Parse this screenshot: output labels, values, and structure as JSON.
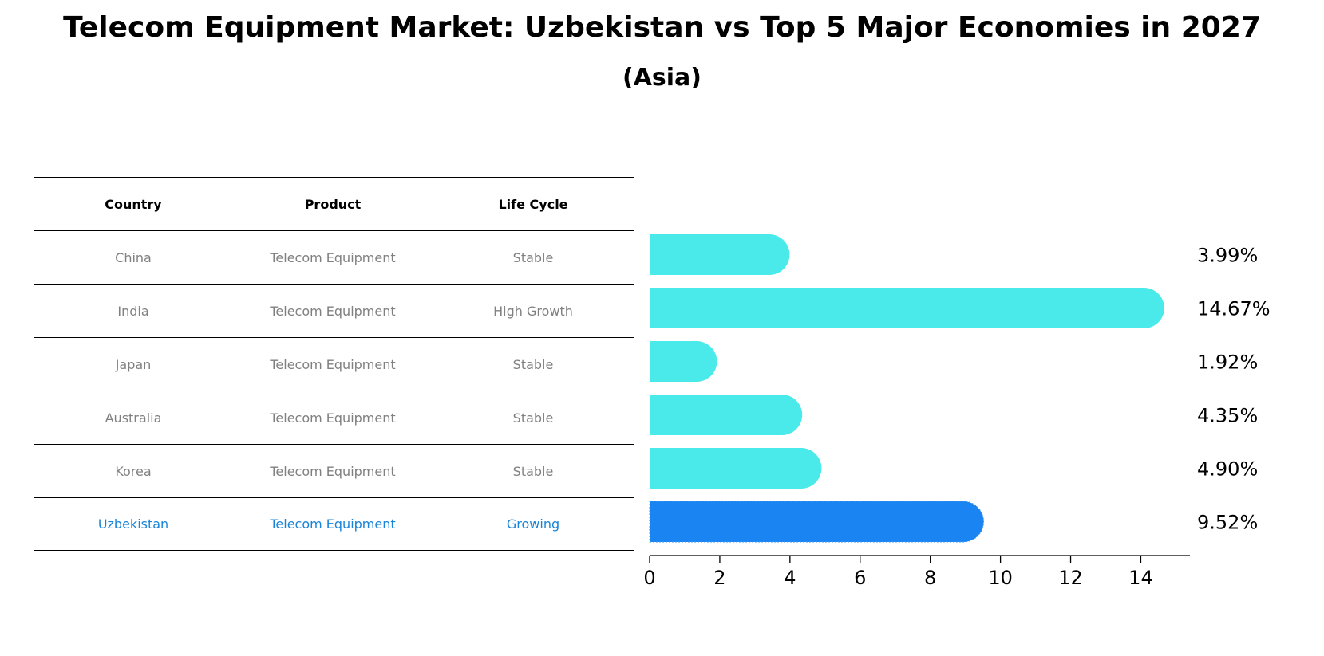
{
  "title": "Telecom Equipment Market: Uzbekistan vs Top 5 Major Economies in 2027",
  "subtitle": "(Asia)",
  "table": {
    "headers": [
      "Country",
      "Product",
      "Life Cycle"
    ],
    "rows": [
      {
        "country": "China",
        "product": "Telecom Equipment",
        "life_cycle": "Stable"
      },
      {
        "country": "India",
        "product": "Telecom Equipment",
        "life_cycle": "High Growth"
      },
      {
        "country": "Japan",
        "product": "Telecom Equipment",
        "life_cycle": "Stable"
      },
      {
        "country": "Australia",
        "product": "Telecom Equipment",
        "life_cycle": "Stable"
      },
      {
        "country": "Korea",
        "product": "Telecom Equipment",
        "life_cycle": "Stable"
      },
      {
        "country": "Uzbekistan",
        "product": "Telecom Equipment",
        "life_cycle": "Growing"
      }
    ]
  },
  "colors": {
    "bar": "#4aeaea",
    "highlight": "#1a85f2",
    "highlight_text": "#1a85d8",
    "muted_text": "#808080"
  },
  "chart_data": {
    "type": "bar",
    "orientation": "horizontal",
    "categories": [
      "China",
      "India",
      "Japan",
      "Australia",
      "Korea",
      "Uzbekistan"
    ],
    "values": [
      3.99,
      14.67,
      1.92,
      4.35,
      4.9,
      9.52
    ],
    "value_labels": [
      "3.99%",
      "14.67%",
      "1.92%",
      "4.35%",
      "4.90%",
      "9.52%"
    ],
    "highlight": "Uzbekistan",
    "xlim": [
      0,
      15.4
    ],
    "xticks": [
      0,
      2,
      4,
      6,
      8,
      10,
      12,
      14
    ],
    "grid": false
  }
}
